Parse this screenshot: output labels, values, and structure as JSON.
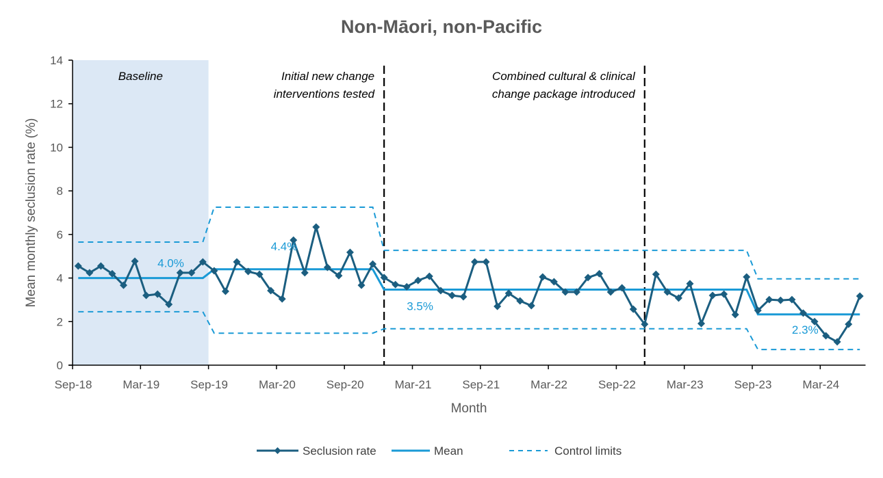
{
  "chart_data": {
    "type": "line",
    "title": "Non-Māori, non-Pacific",
    "xlabel": "Month",
    "ylabel": "Mean monthly seclusion rate (%)",
    "ylim": [
      0,
      14
    ],
    "yticks": [
      0,
      2,
      4,
      6,
      8,
      10,
      12,
      14
    ],
    "xtick_labels": [
      "Sep-18",
      "Mar-19",
      "Sep-19",
      "Mar-20",
      "Sep-20",
      "Mar-21",
      "Sep-21",
      "Mar-22",
      "Sep-22",
      "Mar-23",
      "Sep-23",
      "Mar-24"
    ],
    "x_start": "Sep-18",
    "x_end": "Jun-24",
    "grid": false,
    "legend_placement": "bottom",
    "colors": {
      "seclusion": "#1b5e80",
      "mean": "#1a9ad6",
      "limits": "#1a9ad6",
      "baseline_shade": "#dce8f5",
      "markers": "#000000"
    },
    "series": [
      {
        "name": "Seclusion rate",
        "style": "line-diamond",
        "values": [
          4.55,
          4.24,
          4.55,
          4.2,
          3.67,
          4.77,
          3.2,
          3.26,
          2.79,
          4.24,
          4.24,
          4.74,
          4.33,
          3.39,
          4.74,
          4.3,
          4.17,
          3.42,
          3.04,
          5.74,
          4.24,
          6.34,
          4.49,
          4.11,
          5.18,
          3.67,
          4.64,
          4.02,
          3.7,
          3.6,
          3.89,
          4.08,
          3.42,
          3.2,
          3.14,
          4.74,
          4.74,
          2.7,
          3.3,
          2.95,
          2.73,
          4.05,
          3.83,
          3.36,
          3.36,
          4.02,
          4.2,
          3.36,
          3.55,
          2.57,
          1.88,
          4.17,
          3.36,
          3.08,
          3.74,
          1.91,
          3.2,
          3.26,
          2.32,
          4.05,
          2.51,
          3.01,
          2.98,
          3.01,
          2.39,
          2.0,
          1.35,
          1.07,
          1.88,
          3.17
        ]
      },
      {
        "name": "Mean",
        "style": "solid"
      },
      {
        "name": "Control limits",
        "style": "dashed"
      }
    ],
    "phases": [
      {
        "start": "Sep-18",
        "end": "Aug-19",
        "mean": 4.0,
        "ucl": 5.65,
        "lcl": 2.45,
        "mean_label": "4.0%"
      },
      {
        "start": "Sep-19",
        "end": "Nov-20",
        "mean": 4.4,
        "ucl": 7.25,
        "lcl": 1.47,
        "mean_label": "4.4%"
      },
      {
        "start": "Dec-20",
        "end": "Aug-23",
        "mean": 3.47,
        "ucl": 5.27,
        "lcl": 1.67,
        "mean_label": "3.5%"
      },
      {
        "start": "Sep-23",
        "end": "Jun-24",
        "mean": 2.33,
        "ucl": 3.96,
        "lcl": 0.72,
        "mean_label": "2.3%"
      }
    ],
    "shaded_region": {
      "label": "Baseline",
      "start": "Sep-18",
      "end": "Aug-19"
    },
    "annotations": [
      {
        "month": "Dec-20",
        "line1": "Initial new change",
        "line2": "interventions tested"
      },
      {
        "month": "Nov-22",
        "line1": "Combined cultural & clinical",
        "line2": "change package introduced"
      }
    ]
  }
}
